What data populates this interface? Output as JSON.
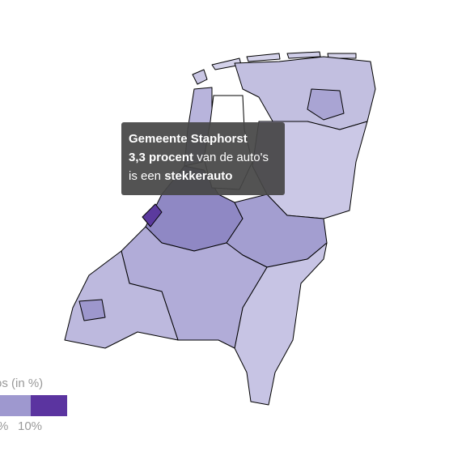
{
  "map": {
    "tooltip": {
      "title": "Gemeente Staphorst",
      "value_text": "3,3 procent",
      "line_1_rest": "van de auto's",
      "line_2_start": "is een",
      "line_2_emphasis": "stekkerauto"
    },
    "legend": {
      "title": "os (in %)",
      "labels": [
        "%",
        "10%"
      ]
    }
  }
}
